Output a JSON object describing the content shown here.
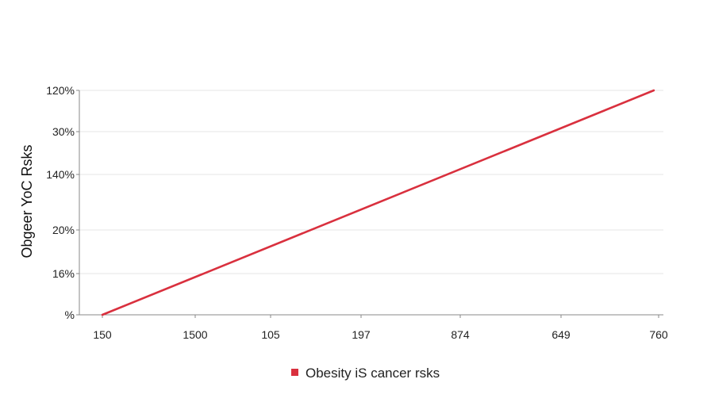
{
  "chart_data": {
    "type": "line",
    "title": "",
    "xlabel": "",
    "ylabel": "Obgeer YoC Rsks",
    "x_tick_labels": [
      "150",
      "1500",
      "105",
      "197",
      "874",
      "649",
      "760"
    ],
    "y_tick_labels": [
      "%",
      "16%",
      "20%",
      "140%",
      "30%",
      "120%"
    ],
    "grid": true,
    "legend_position": "bottom-center",
    "series": [
      {
        "name": "Obesity iS cancer rsks",
        "color": "#d9303e",
        "points": [
          {
            "x_index": 0,
            "y_index": 0
          },
          {
            "x_index": 5.95,
            "y_index": 5
          }
        ]
      }
    ]
  }
}
